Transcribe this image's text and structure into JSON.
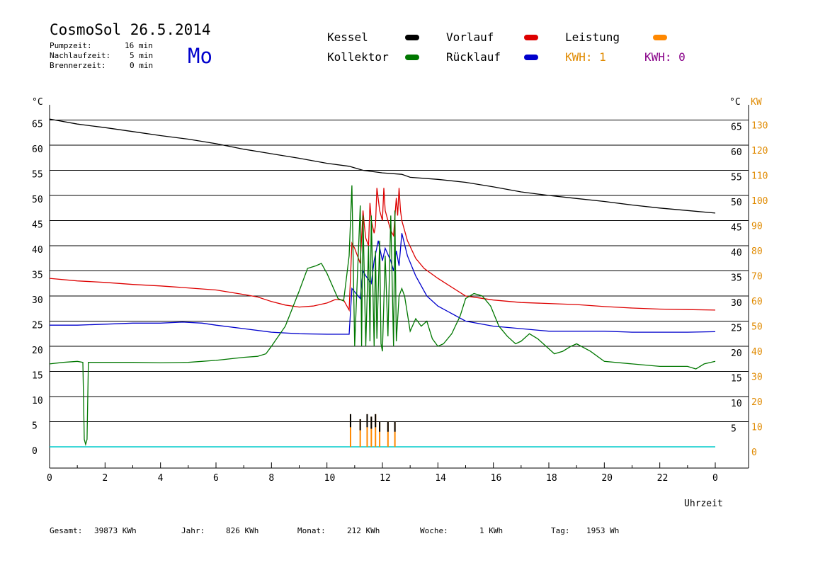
{
  "header": {
    "title": "CosmoSol 26.5.2014",
    "pumpzeit_label": "Pumpzeit:",
    "pumpzeit_value": "16 min",
    "nachlaufzeit_label": "Nachlaufzeit:",
    "nachlaufzeit_value": "5 min",
    "brennerzeit_label": "Brennerzeit:",
    "brennerzeit_value": "0 min",
    "weekday": "Mo"
  },
  "legend": {
    "kessel": "Kessel",
    "vorlauf": "Vorlauf",
    "leistung": "Leistung",
    "kollektor": "Kollektor",
    "ruecklauf": "Rücklauf",
    "kwh_1": "KWH: 1",
    "kwh_2": "KWH: 0"
  },
  "colors": {
    "kessel": "#000000",
    "vorlauf": "#dd0000",
    "ruecklauf": "#0000cc",
    "kollektor": "#007700",
    "leistung": "#ff8800",
    "kwh_2": "#880088",
    "baseline": "#00cccc",
    "right_axis": "#e08a00"
  },
  "chart_data": {
    "type": "line",
    "xlabel": "Uhrzeit",
    "ylabel_left": "°C",
    "ylabel_right_temp": "°C",
    "ylabel_right_power": "KW",
    "xlim": [
      0,
      24
    ],
    "ylim": [
      0,
      65
    ],
    "y2lim": [
      0,
      130
    ],
    "grid": "horizontal",
    "x_ticks": [
      "0",
      "2",
      "4",
      "6",
      "8",
      "10",
      "12",
      "14",
      "16",
      "18",
      "20",
      "22",
      "0"
    ],
    "y_ticks": [
      "0",
      "5",
      "10",
      "15",
      "20",
      "25",
      "30",
      "35",
      "40",
      "45",
      "50",
      "55",
      "60",
      "65"
    ],
    "y2_ticks": [
      "0",
      "10",
      "20",
      "30",
      "40",
      "50",
      "60",
      "70",
      "80",
      "90",
      "100",
      "110",
      "120",
      "130"
    ],
    "series": [
      {
        "name": "Kessel",
        "x": [
          0,
          1,
          2,
          3,
          4,
          5,
          6,
          7,
          8,
          9,
          10,
          10.8,
          11.3,
          12,
          12.7,
          13,
          14,
          15,
          16,
          17,
          18,
          19,
          20,
          21,
          22,
          23,
          24
        ],
        "y": [
          65.2,
          64.2,
          63.5,
          62.7,
          61.9,
          61.2,
          60.3,
          59.2,
          58.3,
          57.4,
          56.4,
          55.8,
          55.0,
          54.5,
          54.2,
          53.6,
          53.2,
          52.6,
          51.7,
          50.7,
          50.0,
          49.4,
          48.8,
          48.1,
          47.5,
          47.0,
          46.5
        ]
      },
      {
        "name": "Vorlauf",
        "x": [
          0,
          1,
          2,
          3,
          4,
          5,
          6,
          7,
          7.5,
          8,
          8.5,
          9,
          9.5,
          10,
          10.3,
          10.6,
          10.8,
          10.9,
          11.0,
          11.1,
          11.2,
          11.3,
          11.35,
          11.4,
          11.5,
          11.55,
          11.6,
          11.7,
          11.75,
          11.8,
          11.9,
          12.0,
          12.05,
          12.1,
          12.2,
          12.3,
          12.4,
          12.5,
          12.55,
          12.6,
          12.65,
          12.7,
          12.9,
          13.2,
          13.5,
          14,
          15,
          15.5,
          16,
          17,
          18,
          19,
          20,
          21,
          22,
          23,
          24
        ],
        "y": [
          33.5,
          33.0,
          32.7,
          32.3,
          32.0,
          31.6,
          31.2,
          30.3,
          29.8,
          28.9,
          28.2,
          27.8,
          28.0,
          28.6,
          29.3,
          29.2,
          27.2,
          40.5,
          39.5,
          38.0,
          36.5,
          47.0,
          44.0,
          41.5,
          40.0,
          48.5,
          45.0,
          42.5,
          44.0,
          51.5,
          47.0,
          45.0,
          51.5,
          47.0,
          45.0,
          43.0,
          42.0,
          49.5,
          46.0,
          51.5,
          47.0,
          45.0,
          41.0,
          37.5,
          35.5,
          33.5,
          30.0,
          29.6,
          29.2,
          28.7,
          28.5,
          28.3,
          27.9,
          27.6,
          27.4,
          27.3,
          27.2
        ]
      },
      {
        "name": "Rücklauf",
        "x": [
          0,
          1,
          2,
          3,
          4,
          4.8,
          5.5,
          6,
          7,
          8,
          9,
          10,
          10.8,
          10.9,
          11.2,
          11.3,
          11.4,
          11.6,
          11.7,
          11.85,
          12.0,
          12.1,
          12.3,
          12.4,
          12.5,
          12.6,
          12.7,
          12.9,
          13.2,
          13.6,
          14,
          15,
          16,
          17,
          18,
          19,
          20,
          21,
          22,
          23,
          24
        ],
        "y": [
          24.2,
          24.2,
          24.4,
          24.6,
          24.6,
          24.8,
          24.6,
          24.2,
          23.5,
          22.8,
          22.5,
          22.4,
          22.4,
          31.5,
          29.5,
          35.0,
          34.0,
          32.5,
          37.0,
          41.0,
          37.0,
          39.5,
          37.0,
          35.0,
          39.0,
          36.0,
          42.5,
          38.0,
          34.0,
          30.0,
          28.0,
          25.0,
          24.0,
          23.5,
          23.0,
          23.0,
          23.0,
          22.8,
          22.8,
          22.8,
          22.9
        ]
      },
      {
        "name": "Kollektor",
        "x": [
          0,
          0.5,
          1.0,
          1.2,
          1.25,
          1.3,
          1.35,
          1.4,
          1.5,
          2,
          3,
          4,
          5,
          6,
          7,
          7.5,
          7.8,
          8,
          8.5,
          9,
          9.3,
          9.6,
          9.8,
          10,
          10.4,
          10.6,
          10.8,
          10.9,
          11.0,
          11.1,
          11.2,
          11.25,
          11.3,
          11.4,
          11.5,
          11.55,
          11.6,
          11.7,
          11.75,
          11.8,
          11.9,
          11.95,
          12.0,
          12.1,
          12.2,
          12.3,
          12.4,
          12.45,
          12.5,
          12.6,
          12.7,
          12.8,
          13.0,
          13.2,
          13.4,
          13.6,
          13.8,
          14.0,
          14.2,
          14.5,
          14.8,
          15.0,
          15.3,
          15.6,
          15.9,
          16.2,
          16.5,
          16.8,
          17.0,
          17.3,
          17.6,
          17.9,
          18.2,
          18.5,
          18.8,
          19.0,
          19.5,
          20,
          21,
          22,
          23,
          23.3,
          23.6,
          24
        ],
        "y": [
          16.5,
          16.8,
          17.0,
          16.8,
          1.5,
          0.5,
          1.5,
          16.8,
          16.8,
          16.8,
          16.8,
          16.7,
          16.8,
          17.2,
          17.8,
          18.0,
          18.5,
          20.0,
          24.0,
          31.0,
          35.5,
          36.0,
          36.5,
          34.5,
          29.5,
          29.0,
          38.0,
          52.0,
          20.0,
          34.0,
          48.0,
          20.0,
          46.0,
          20.0,
          40.0,
          21.0,
          46.0,
          20.0,
          39.0,
          21.5,
          41.0,
          20.5,
          19.0,
          38.0,
          22.0,
          46.0,
          20.0,
          47.0,
          21.0,
          30.0,
          31.5,
          30.0,
          23.0,
          25.5,
          24.0,
          25.0,
          21.5,
          20.0,
          20.5,
          22.5,
          26.0,
          29.5,
          30.5,
          30.0,
          28.0,
          24.0,
          22.0,
          20.5,
          21.0,
          22.5,
          21.5,
          20.0,
          18.5,
          19.0,
          20.0,
          20.5,
          19.0,
          17.0,
          16.5,
          16.0,
          16.0,
          15.5,
          16.5,
          17.0
        ]
      }
    ],
    "leistung_bars": {
      "x": [
        10.85,
        11.2,
        11.45,
        11.6,
        11.75,
        11.9,
        12.2,
        12.45
      ],
      "values_kw": [
        13,
        11,
        13,
        12,
        13,
        10,
        10,
        10
      ]
    },
    "totals": {
      "gesamt_label": "Gesamt:",
      "gesamt_value": "39873 KWh",
      "jahr_label": "Jahr:",
      "jahr_value": "826 KWh",
      "monat_label": "Monat:",
      "monat_value": "212 KWh",
      "woche_label": "Woche:",
      "woche_value": "1 KWh",
      "tag_label": "Tag:",
      "tag_value": "1953 Wh"
    }
  }
}
